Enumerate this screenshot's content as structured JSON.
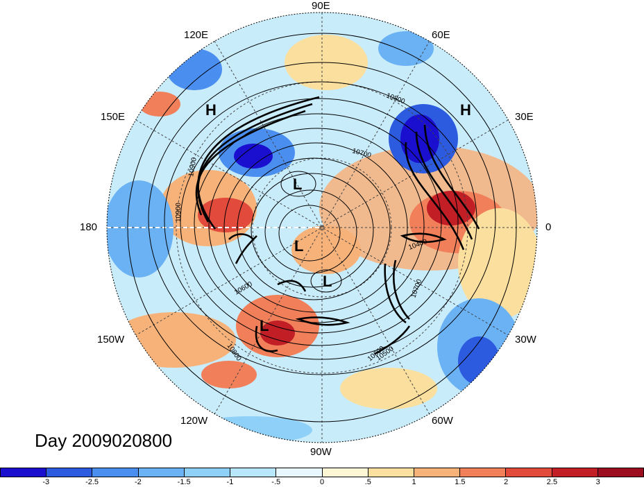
{
  "title": "Day 2009020800",
  "lon_labels": [
    "90E",
    "60E",
    "30E",
    "0",
    "30W",
    "60W",
    "90W",
    "120W",
    "150W",
    "180",
    "150E",
    "120E"
  ],
  "system_labels": [
    "H",
    "H",
    "L",
    "L",
    "L",
    "L"
  ],
  "contour_labels": [
    "10800",
    "10700",
    "10900",
    "10900",
    "10600",
    "10800",
    "10600",
    "10700",
    "10400",
    "10500"
  ],
  "colorbar": {
    "ticks": [
      "-3",
      "-2.5",
      "-2",
      "-1.5",
      "-1",
      "-.5",
      "0",
      ".5",
      "1",
      "1.5",
      "2",
      "2.5",
      "3"
    ],
    "colors": [
      "#1a0fcf",
      "#2d5be0",
      "#4a8ef0",
      "#6bb2f5",
      "#8fd0f8",
      "#b8e6fb",
      "#e8f7fd",
      "#fdf6d4",
      "#fbdf9e",
      "#f7b27a",
      "#f07f5a",
      "#e24a3c",
      "#c21e26",
      "#9b0d1f"
    ]
  }
}
